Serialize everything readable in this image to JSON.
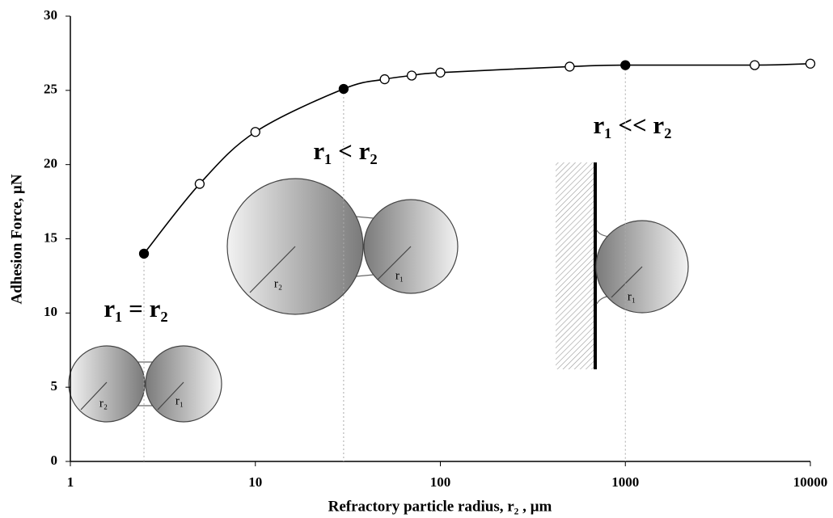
{
  "chart_data": {
    "type": "line",
    "xlabel": "Refractory particle radius, r₂ , µm",
    "ylabel": "Adhesion Force, µN",
    "x": [
      2.5,
      5,
      10,
      30,
      50,
      70,
      100,
      500,
      1000,
      5000,
      10000
    ],
    "series": [
      {
        "color": "#000000",
        "values": [
          14.0,
          18.7,
          22.2,
          25.1,
          25.75,
          26.0,
          26.2,
          26.6,
          26.7,
          26.7,
          26.8
        ],
        "filled": [
          true,
          false,
          false,
          true,
          false,
          false,
          false,
          false,
          true,
          false,
          false
        ]
      }
    ],
    "xscale": "log",
    "xlim": [
      1,
      10000
    ],
    "xticks": [
      1,
      10,
      100,
      1000,
      10000
    ],
    "ylim": [
      0,
      30
    ],
    "yticks": [
      0,
      5,
      10,
      15,
      20,
      25,
      30
    ],
    "grid": false,
    "annotations": [
      "r₁ = r₂",
      "r₁ < r₂",
      "r₁ << r₂",
      "r₂",
      "r₁",
      "r₂",
      "r₁",
      "r₁"
    ]
  }
}
